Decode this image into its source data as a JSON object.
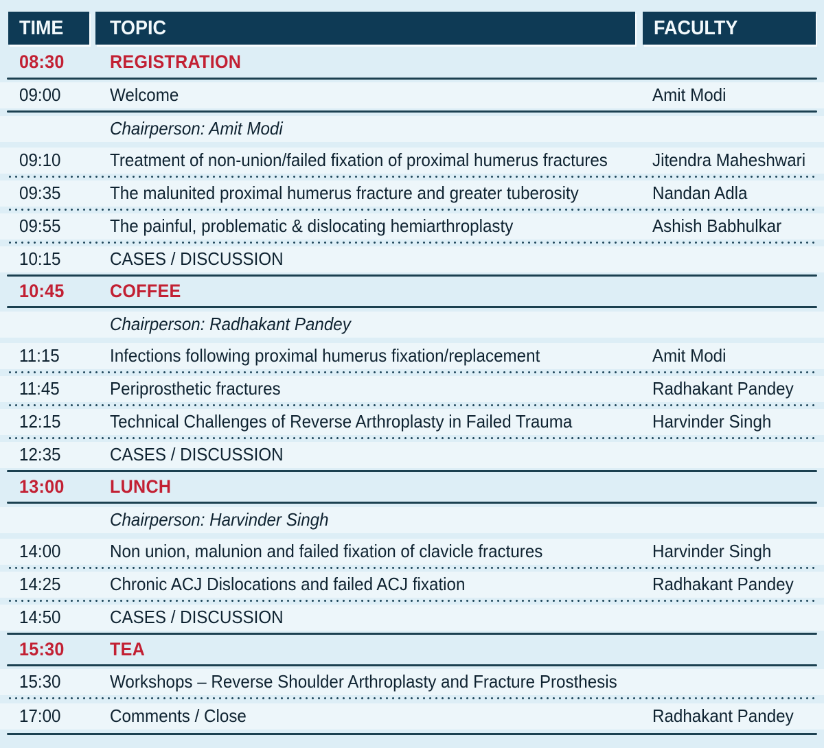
{
  "table": {
    "headers": {
      "time": "TIME",
      "topic": "TOPIC",
      "faculty": "FACULTY"
    },
    "colors": {
      "header_bg": "#0e3a55",
      "section_red": "#c22033",
      "page_bg": "#ddeef6",
      "row_band_bg": "#edf6fa",
      "rule_navy": "#1b4050"
    },
    "rows": [
      {
        "type": "section",
        "time": "08:30",
        "topic": "REGISTRATION",
        "faculty": ""
      },
      {
        "type": "item",
        "time": "09:00",
        "topic": "Welcome",
        "faculty": "Amit Modi"
      },
      {
        "type": "chair",
        "time": "",
        "topic": "Chairperson: Amit Modi",
        "faculty": ""
      },
      {
        "type": "item",
        "time": "09:10",
        "topic": "Treatment of non-union/failed fixation of proximal humerus fractures",
        "faculty": "Jitendra Maheshwari"
      },
      {
        "type": "item",
        "time": "09:35",
        "topic": "The malunited proximal humerus fracture and greater tuberosity",
        "faculty": "Nandan Adla"
      },
      {
        "type": "item",
        "time": "09:55",
        "topic": "The painful, problematic & dislocating hemiarthroplasty",
        "faculty": "Ashish Babhulkar"
      },
      {
        "type": "item",
        "time": "10:15",
        "topic": "CASES / DISCUSSION",
        "faculty": ""
      },
      {
        "type": "section",
        "time": "10:45",
        "topic": "COFFEE",
        "faculty": ""
      },
      {
        "type": "chair",
        "time": "",
        "topic": "Chairperson: Radhakant Pandey",
        "faculty": ""
      },
      {
        "type": "item",
        "time": "11:15",
        "topic": "Infections following proximal humerus fixation/replacement",
        "faculty": "Amit Modi"
      },
      {
        "type": "item",
        "time": "11:45",
        "topic": "Periprosthetic fractures",
        "faculty": "Radhakant Pandey"
      },
      {
        "type": "item",
        "time": "12:15",
        "topic": "Technical Challenges of Reverse Arthroplasty in Failed Trauma",
        "faculty": "Harvinder Singh"
      },
      {
        "type": "item",
        "time": "12:35",
        "topic": "CASES / DISCUSSION",
        "faculty": ""
      },
      {
        "type": "section",
        "time": "13:00",
        "topic": "LUNCH",
        "faculty": ""
      },
      {
        "type": "chair",
        "time": "",
        "topic": "Chairperson: Harvinder Singh",
        "faculty": ""
      },
      {
        "type": "item",
        "time": "14:00",
        "topic": "Non union, malunion and failed fixation of clavicle fractures",
        "faculty": "Harvinder Singh"
      },
      {
        "type": "item",
        "time": "14:25",
        "topic": "Chronic ACJ Dislocations and failed ACJ fixation",
        "faculty": "Radhakant Pandey"
      },
      {
        "type": "item",
        "time": "14:50",
        "topic": "CASES / DISCUSSION",
        "faculty": ""
      },
      {
        "type": "section",
        "time": "15:30",
        "topic": "TEA",
        "faculty": ""
      },
      {
        "type": "item",
        "time": "15:30",
        "topic": "Workshops – Reverse Shoulder Arthroplasty and Fracture Prosthesis",
        "faculty": ""
      },
      {
        "type": "item",
        "time": "17:00",
        "topic": "Comments / Close",
        "faculty": "Radhakant Pandey"
      }
    ]
  }
}
